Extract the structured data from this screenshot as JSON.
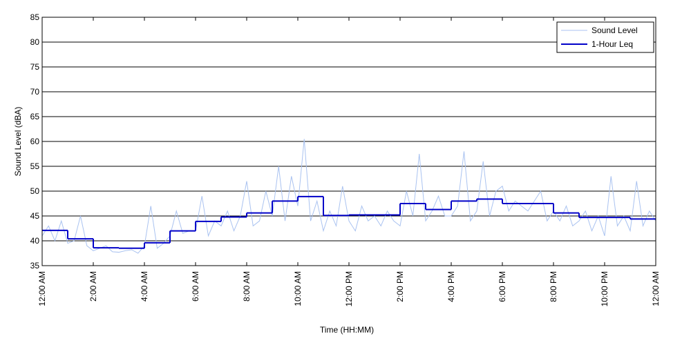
{
  "chart_data": {
    "type": "line",
    "x_label": "Time (HH:MM)",
    "y_label": "Sound Level (dBA)",
    "xlim": [
      0,
      24
    ],
    "xticks": [
      {
        "value": 0,
        "label": "12:00 AM"
      },
      {
        "value": 2,
        "label": "2:00 AM"
      },
      {
        "value": 4,
        "label": "4:00 AM"
      },
      {
        "value": 6,
        "label": "6:00 AM"
      },
      {
        "value": 8,
        "label": "8:00 AM"
      },
      {
        "value": 10,
        "label": "10:00 AM"
      },
      {
        "value": 12,
        "label": "12:00 PM"
      },
      {
        "value": 14,
        "label": "2:00 PM"
      },
      {
        "value": 16,
        "label": "4:00 PM"
      },
      {
        "value": 18,
        "label": "6:00 PM"
      },
      {
        "value": 20,
        "label": "8:00 PM"
      },
      {
        "value": 22,
        "label": "10:00 PM"
      },
      {
        "value": 24,
        "label": "12:00 AM"
      }
    ],
    "ylim": [
      35,
      85
    ],
    "yticks": [
      35,
      40,
      45,
      50,
      55,
      60,
      65,
      70,
      75,
      80,
      85
    ],
    "grid": true,
    "legend": "upper right",
    "series": [
      {
        "name": "Sound Level",
        "color": "#a9c2f0",
        "style": "line",
        "x": [
          0,
          0.25,
          0.5,
          0.75,
          1,
          1.25,
          1.5,
          1.75,
          2,
          2.25,
          2.5,
          2.75,
          3,
          3.25,
          3.5,
          3.75,
          4,
          4.25,
          4.5,
          4.75,
          5,
          5.25,
          5.5,
          5.75,
          6,
          6.25,
          6.5,
          6.75,
          7,
          7.25,
          7.5,
          7.75,
          8,
          8.25,
          8.5,
          8.75,
          9,
          9.25,
          9.5,
          9.75,
          10,
          10.25,
          10.5,
          10.75,
          11,
          11.25,
          11.5,
          11.75,
          12,
          12.25,
          12.5,
          12.75,
          13,
          13.25,
          13.5,
          13.75,
          14,
          14.25,
          14.5,
          14.75,
          15,
          15.25,
          15.5,
          15.75,
          16,
          16.25,
          16.5,
          16.75,
          17,
          17.25,
          17.5,
          17.75,
          18,
          18.25,
          18.5,
          18.75,
          19,
          19.25,
          19.5,
          19.75,
          20,
          20.25,
          20.5,
          20.75,
          21,
          21.25,
          21.5,
          21.75,
          22,
          22.25,
          22.5,
          22.75,
          23,
          23.25,
          23.5,
          23.75,
          24
        ],
        "values": [
          41,
          43,
          40,
          44,
          39.5,
          40,
          45,
          39,
          38,
          38.5,
          39,
          37.8,
          37.7,
          38,
          38.2,
          37.5,
          39,
          47,
          38.5,
          39.5,
          41,
          46,
          41.5,
          42,
          42,
          49,
          41,
          44,
          43,
          46,
          42,
          45,
          52,
          43,
          44,
          50,
          45,
          55,
          44,
          53,
          47,
          60.5,
          44,
          48,
          42,
          46,
          43,
          51,
          44,
          42,
          47,
          44,
          45,
          43,
          46,
          44,
          43,
          50,
          45,
          57.5,
          44,
          46,
          49,
          45,
          45,
          47,
          58,
          44,
          46,
          56,
          45,
          50,
          51,
          46,
          48,
          47,
          46,
          48,
          50,
          44,
          46,
          44,
          47,
          43,
          44,
          46,
          42,
          45,
          41,
          53,
          43,
          45,
          42,
          52,
          43,
          46,
          44
        ]
      },
      {
        "name": "1-Hour Leq",
        "color": "#0000c8",
        "style": "step",
        "x": [
          0,
          1,
          2,
          3,
          4,
          5,
          6,
          7,
          8,
          9,
          10,
          11,
          12,
          13,
          14,
          15,
          16,
          17,
          18,
          19,
          20,
          21,
          22,
          23
        ],
        "values": [
          42.1,
          40.4,
          38.6,
          38.5,
          39.6,
          42.0,
          43.9,
          44.8,
          45.6,
          48.0,
          48.9,
          45.1,
          45.2,
          45.2,
          47.5,
          46.3,
          48.0,
          48.4,
          47.5,
          47.5,
          45.6,
          44.7,
          44.7,
          44.4
        ]
      }
    ]
  }
}
